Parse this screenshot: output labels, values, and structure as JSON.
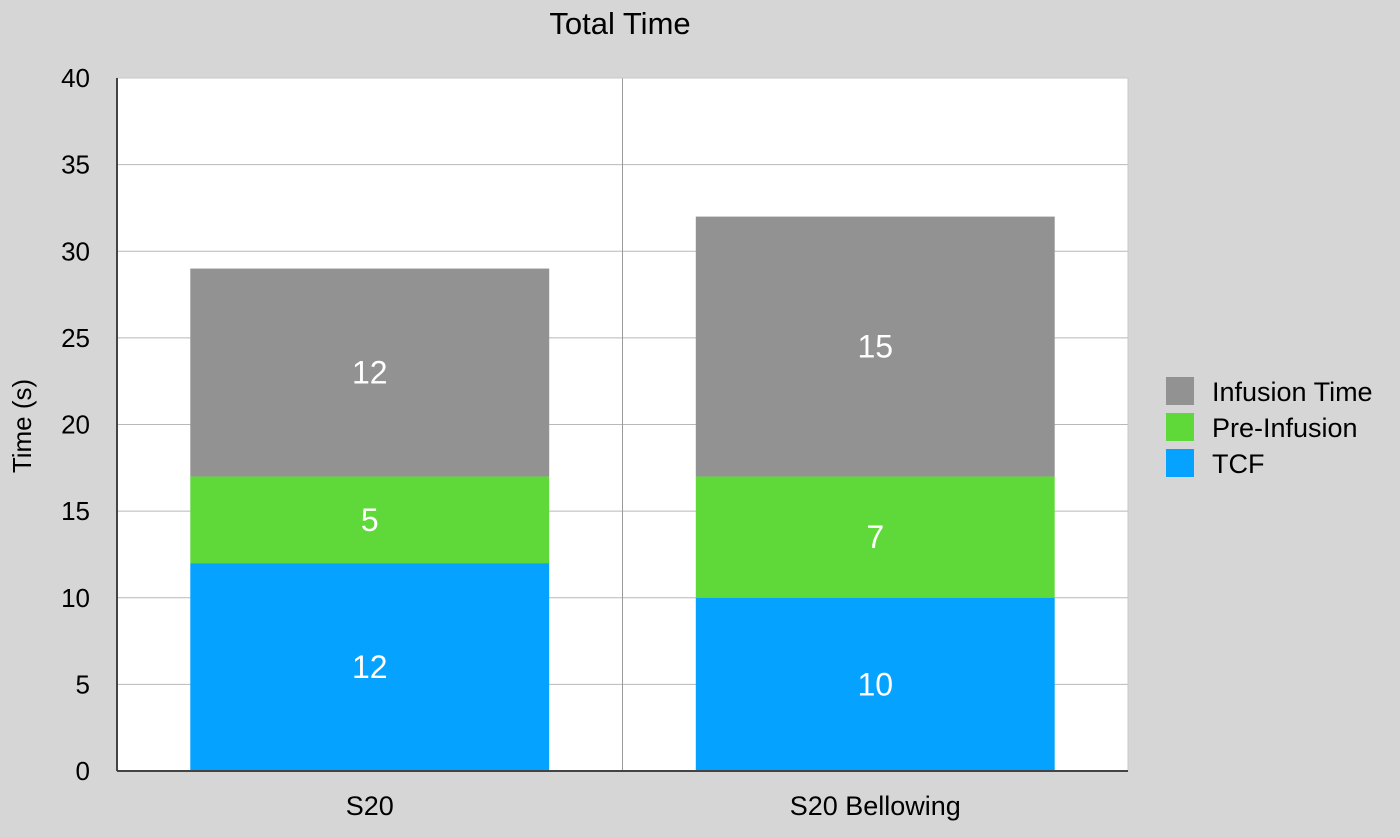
{
  "chart_data": {
    "type": "bar",
    "stacked": true,
    "title": "Total Time",
    "xlabel": "",
    "ylabel": "Time (s)",
    "ylim": [
      0,
      40
    ],
    "yticks": [
      0,
      5,
      10,
      15,
      20,
      25,
      30,
      35,
      40
    ],
    "grid": true,
    "legend_position": "right",
    "categories": [
      "S20",
      "S20 Bellowing"
    ],
    "series": [
      {
        "name": "TCF",
        "values": [
          12,
          10
        ],
        "color": "#05a2ff"
      },
      {
        "name": "Pre-Infusion",
        "values": [
          5,
          7
        ],
        "color": "#5fd93a"
      },
      {
        "name": "Infusion Time",
        "values": [
          12,
          15
        ],
        "color": "#929292"
      }
    ],
    "data_labels": true
  }
}
